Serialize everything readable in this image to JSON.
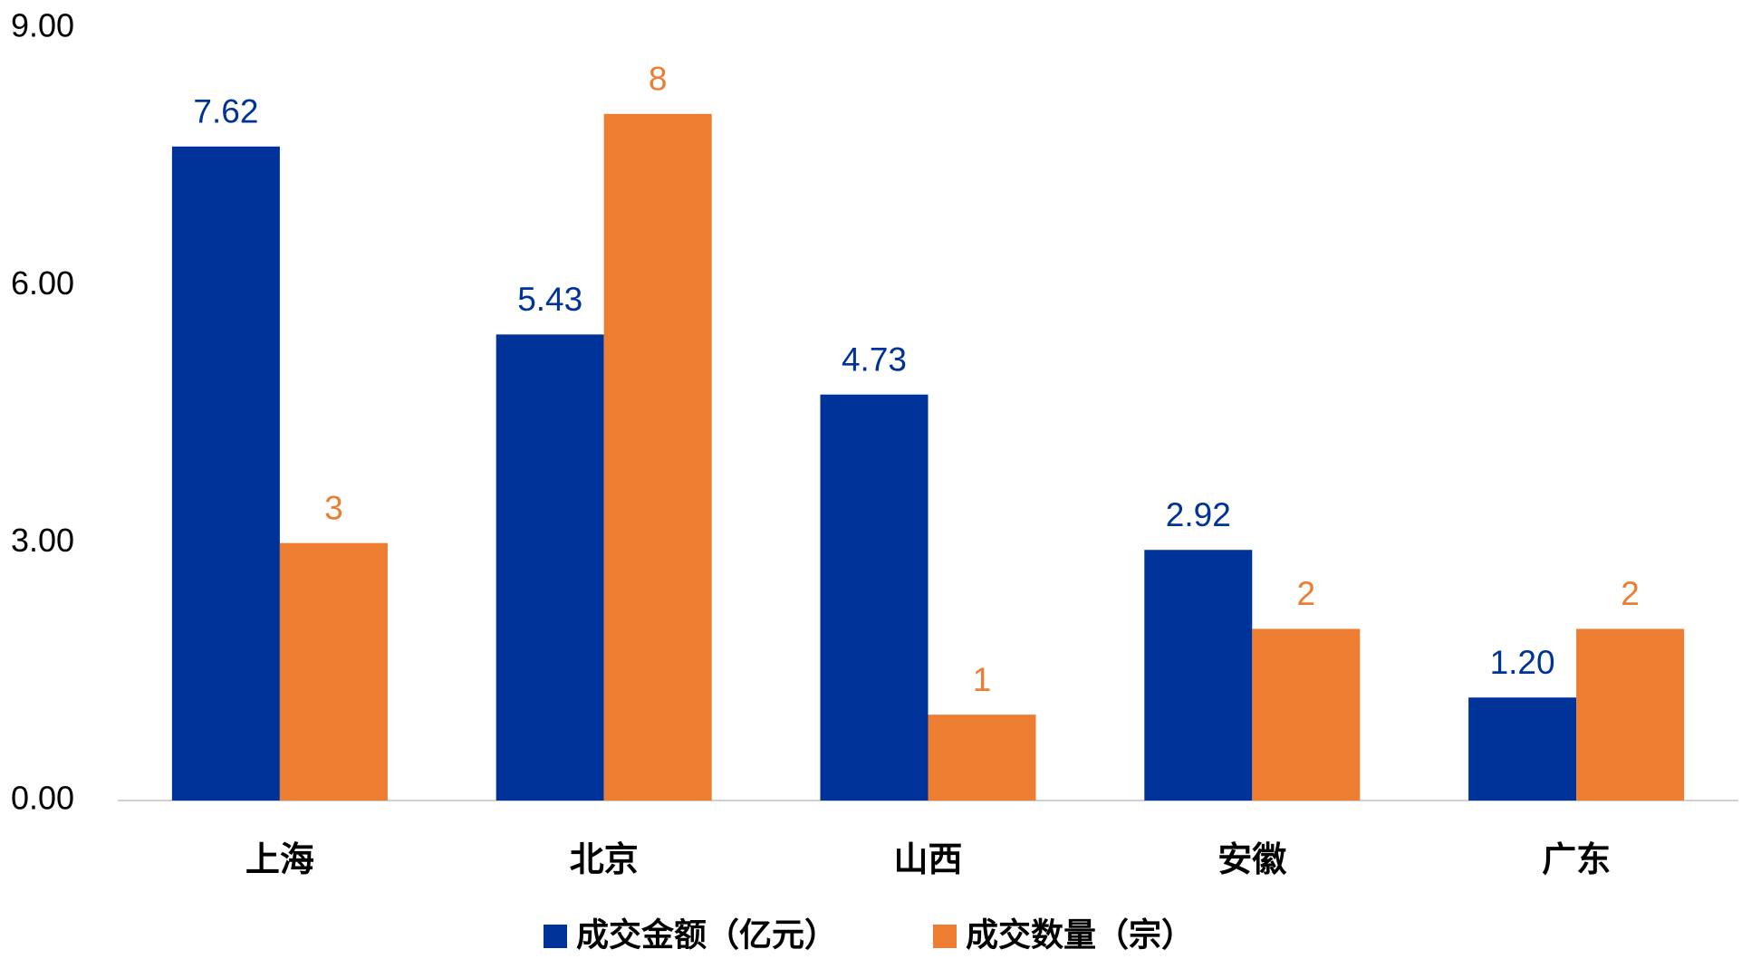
{
  "chart_data": {
    "type": "bar",
    "categories": [
      "上海",
      "北京",
      "山西",
      "安徽",
      "广东"
    ],
    "series": [
      {
        "name": "成交金额（亿元）",
        "color": "#003399",
        "values": [
          7.62,
          5.43,
          4.73,
          2.92,
          1.2
        ],
        "value_labels": [
          "7.62",
          "5.43",
          "4.73",
          "2.92",
          "1.20"
        ]
      },
      {
        "name": "成交数量（宗）",
        "color": "#ed7d31",
        "values": [
          3,
          8,
          1,
          2,
          2
        ]
      }
    ],
    "ylim": [
      0,
      9
    ],
    "yticks": [
      {
        "value": 0,
        "label": "0.00"
      },
      {
        "value": 3,
        "label": "3.00"
      },
      {
        "value": 6,
        "label": "6.00"
      },
      {
        "value": 9,
        "label": "9.00"
      }
    ],
    "grid": false,
    "legend": "bottom"
  }
}
